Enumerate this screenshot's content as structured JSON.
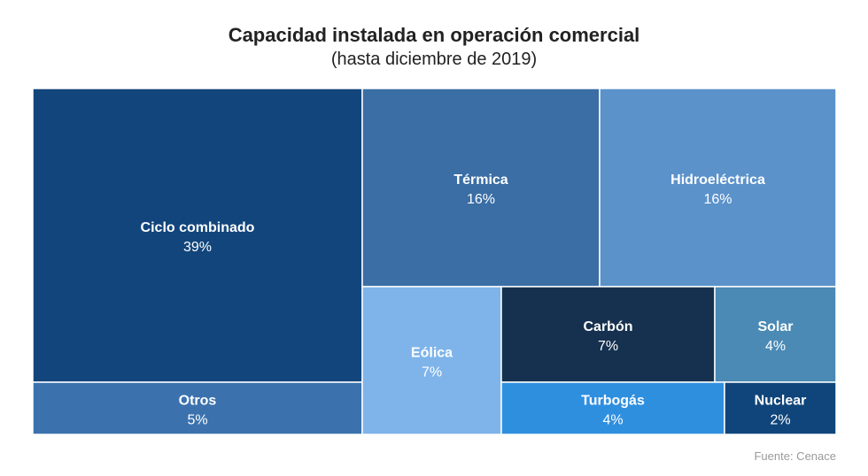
{
  "chart_data": {
    "type": "treemap",
    "title": "Capacidad instalada en operación comercial",
    "subtitle": "(hasta diciembre de 2019)",
    "unit": "%",
    "items": [
      {
        "name": "Ciclo combinado",
        "label": "39%",
        "value": 39,
        "color": "#12457c"
      },
      {
        "name": "Otros",
        "label": "5%",
        "value": 5,
        "color": "#3b72ae"
      },
      {
        "name": "Térmica",
        "label": "16%",
        "value": 16,
        "color": "#3a6ea5"
      },
      {
        "name": "Hidroeléctrica",
        "label": "16%",
        "value": 16,
        "color": "#5b92ca"
      },
      {
        "name": "Eólica",
        "label": "7%",
        "value": 7,
        "color": "#7eb4ea"
      },
      {
        "name": "Carbón",
        "label": "7%",
        "value": 7,
        "color": "#15314f"
      },
      {
        "name": "Solar",
        "label": "4%",
        "value": 4,
        "color": "#4a8ab5"
      },
      {
        "name": "Turbogás",
        "label": "4%",
        "value": 4,
        "color": "#2f8fdf"
      },
      {
        "name": "Nuclear",
        "label": "2%",
        "value": 2,
        "color": "#0f457a"
      }
    ]
  },
  "source": "Fuente: Cenace"
}
